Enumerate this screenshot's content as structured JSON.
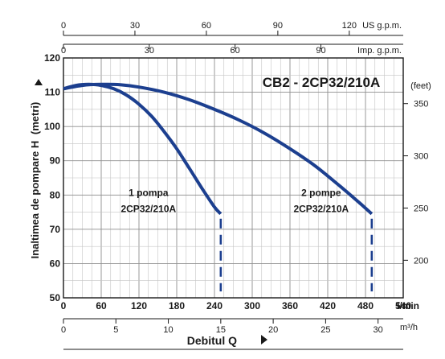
{
  "chart_data": {
    "type": "line",
    "title": "CB2 - 2CP32/210A",
    "ylabel": "Inaltimea de pompare H",
    "ylabel_unit": "(metri)",
    "xlabel": "Debitul Q",
    "right_axis_unit": "(feet)",
    "ylim": [
      50,
      120
    ],
    "xlim_lmin": [
      0,
      540
    ],
    "grid": true,
    "y_ticks": [
      50,
      60,
      70,
      80,
      90,
      100,
      110,
      120
    ],
    "x_ticks_lmin": [
      "0",
      "60",
      "120",
      "180",
      "240",
      "300",
      "360",
      "420",
      "480",
      "540"
    ],
    "x_unit_lmin": "l/min",
    "m3h_axis": {
      "unit": "m³/h",
      "ticks": [
        "0",
        "5",
        "10",
        "15",
        "20",
        "25",
        "30"
      ],
      "values": [
        0,
        5,
        10,
        15,
        20,
        25,
        30
      ]
    },
    "us_gpm_axis": {
      "unit": "US g.p.m.",
      "ticks": [
        "0",
        "30",
        "60",
        "90",
        "120"
      ],
      "values": [
        0,
        30,
        60,
        90,
        120
      ]
    },
    "imp_gpm_axis": {
      "unit": "Imp. g.p.m.",
      "ticks": [
        "0",
        "30",
        "60",
        "90"
      ],
      "values": [
        0,
        30,
        60,
        90
      ]
    },
    "feet_axis": {
      "ticks": [
        "200",
        "250",
        "300",
        "350"
      ],
      "values": [
        200,
        250,
        300,
        350
      ]
    },
    "series": [
      {
        "label_lines": [
          "1 pompa",
          "2CP32/210A"
        ],
        "color": "#1c3f8f",
        "x": [
          0,
          20,
          40,
          60,
          80,
          100,
          120,
          140,
          160,
          180,
          200,
          220,
          240,
          250
        ],
        "y": [
          111,
          112,
          112.3,
          112,
          111,
          109.2,
          106.5,
          103,
          98.5,
          93.5,
          87.8,
          82,
          76.5,
          74.5
        ],
        "cutoff": {
          "x": 250,
          "y": 74.5
        }
      },
      {
        "label_lines": [
          "2 pompe",
          "2CP32/210A"
        ],
        "color": "#1c3f8f",
        "x": [
          0,
          30,
          60,
          90,
          120,
          160,
          200,
          240,
          280,
          320,
          360,
          400,
          440,
          470,
          490
        ],
        "y": [
          111,
          112,
          112.3,
          112.2,
          111.5,
          110,
          107.8,
          105,
          101.8,
          98,
          93.5,
          88.5,
          82.5,
          77.8,
          74.5
        ],
        "cutoff": {
          "x": 490,
          "y": 74.5
        }
      }
    ]
  }
}
